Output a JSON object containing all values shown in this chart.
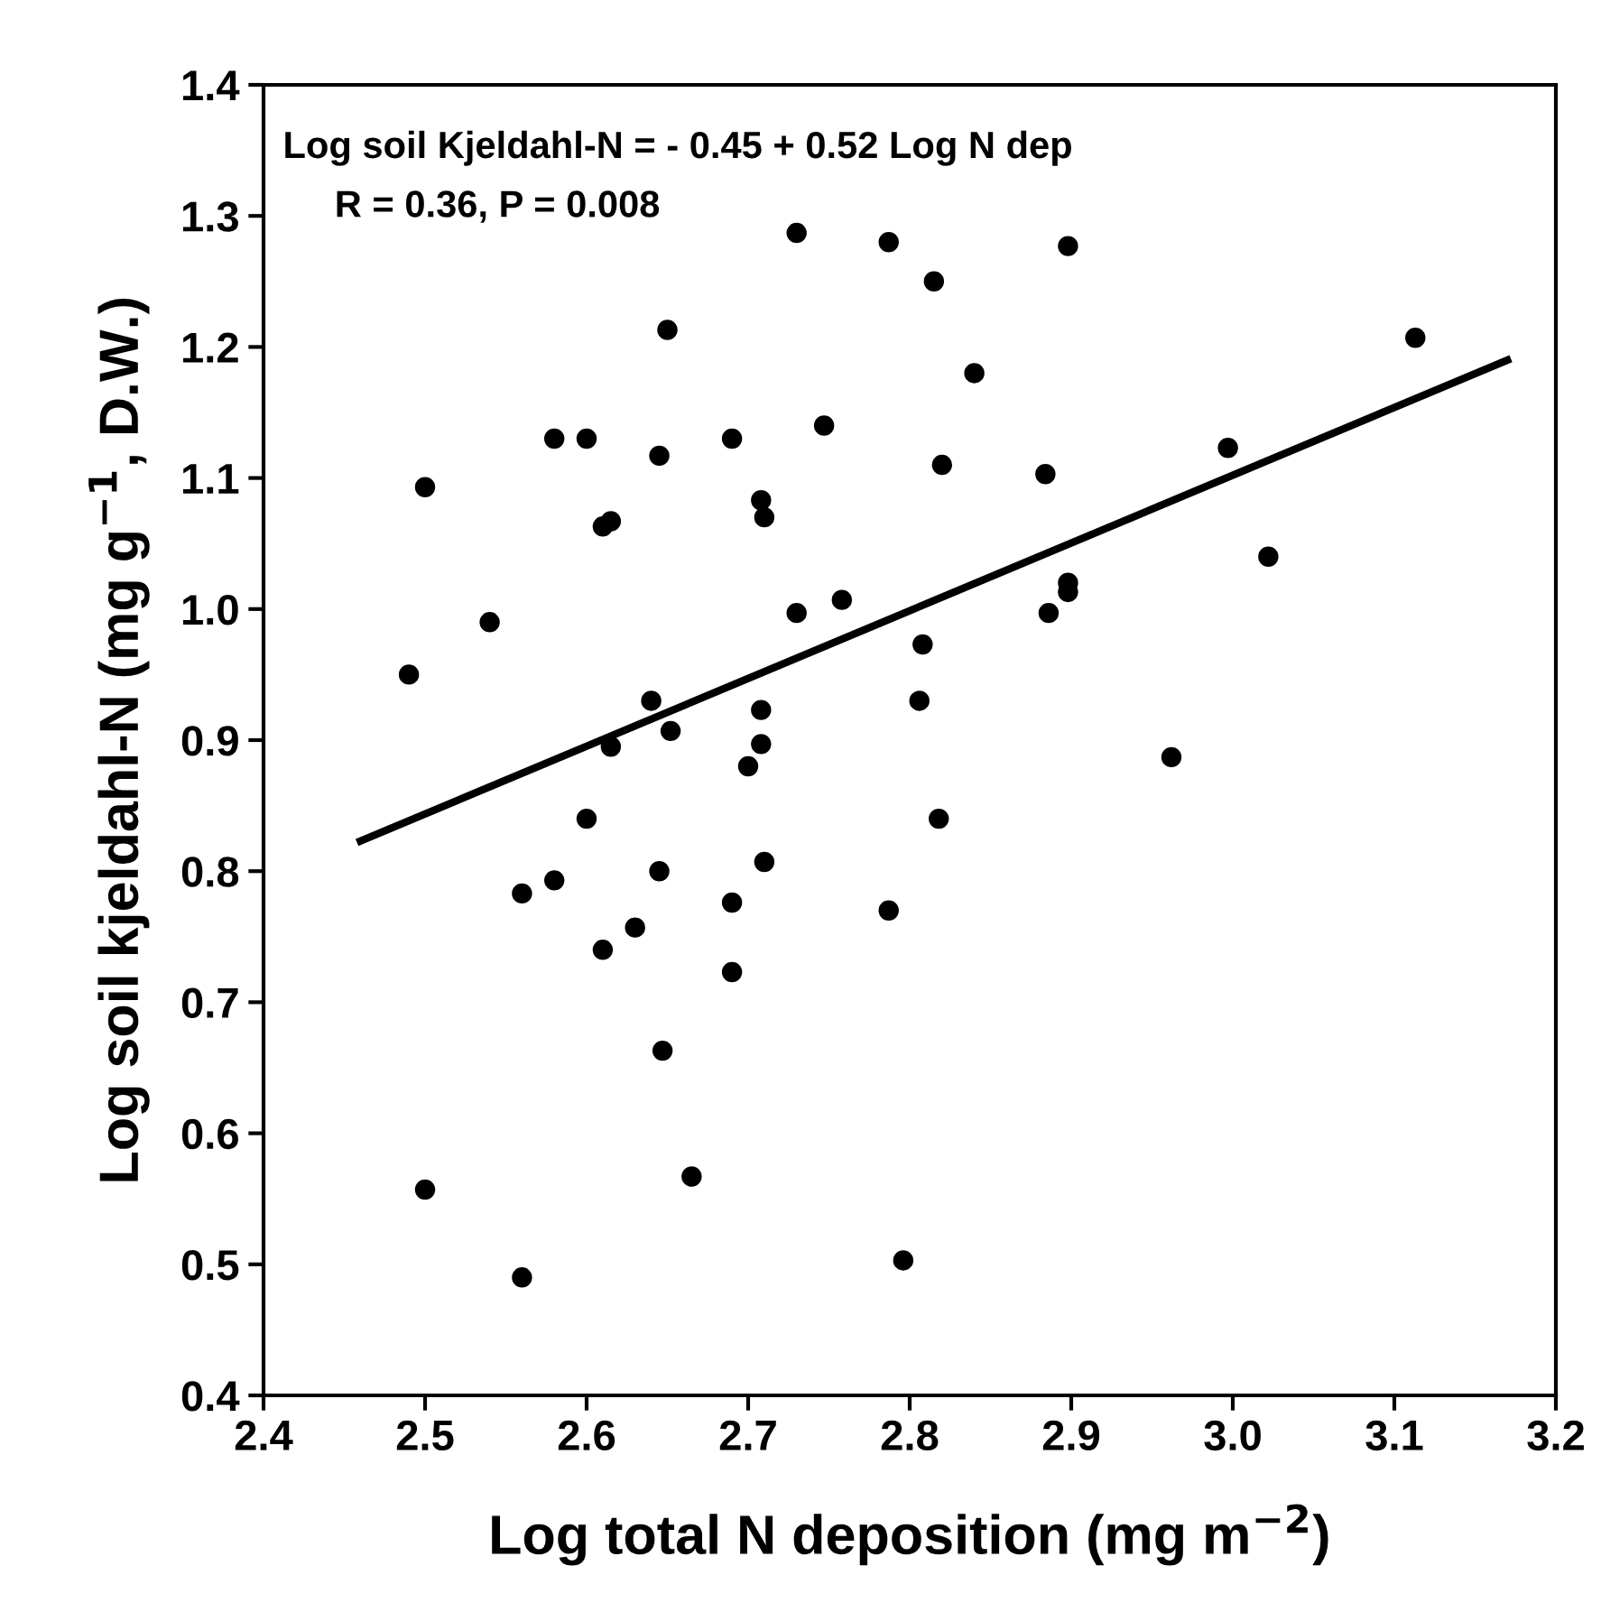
{
  "chart_data": {
    "type": "scatter",
    "xlabel": "Log total N deposition (mg m$^{−2}$)",
    "ylabel": "Log soil kjeldahl-N (mg g$^{−1}$, D.W.)",
    "annotations": [
      "Log soil Kjeldahl-N = - 0.45 + 0.52 Log N dep",
      "R = 0.36, P = 0.008"
    ],
    "xlim": [
      2.4,
      3.2
    ],
    "xticks": [
      2.4,
      2.5,
      2.6,
      2.7,
      2.8,
      2.9,
      {
        "value": 3,
        "label": "3.0"
      },
      3.1,
      3.2
    ],
    "ylim": [
      0.4,
      1.4
    ],
    "yticks": [
      0.4,
      0.5,
      0.6,
      0.7,
      0.8,
      0.9,
      {
        "value": 1,
        "label": "1.0"
      },
      1.1,
      1.2,
      1.3,
      1.4
    ],
    "grid": false,
    "legend": false,
    "marker": "circle",
    "series": [
      {
        "color": "#000000",
        "x": [
          2.49,
          2.5,
          2.5,
          2.54,
          2.56,
          2.56,
          2.58,
          2.58,
          2.6,
          2.6,
          2.61,
          2.61,
          2.615,
          2.615,
          2.63,
          2.64,
          2.645,
          2.645,
          2.647,
          2.65,
          2.652,
          2.665,
          2.69,
          2.69,
          2.69,
          2.7,
          2.708,
          2.708,
          2.708,
          2.71,
          2.71,
          2.73,
          2.73,
          2.747,
          2.758,
          2.787,
          2.787,
          2.796,
          2.806,
          2.808,
          2.815,
          2.818,
          2.82,
          2.84,
          2.884,
          2.886,
          2.898,
          2.898,
          2.898,
          2.962,
          2.997,
          3.022,
          3.113
        ],
        "values": [
          0.95,
          1.093,
          0.557,
          0.99,
          0.783,
          0.49,
          1.13,
          0.793,
          1.13,
          0.84,
          1.063,
          0.74,
          1.067,
          0.895,
          0.757,
          0.93,
          1.117,
          0.8,
          0.663,
          1.213,
          0.907,
          0.567,
          1.13,
          0.776,
          0.723,
          0.88,
          1.083,
          0.923,
          0.897,
          1.07,
          0.807,
          1.287,
          0.997,
          1.14,
          1.007,
          1.28,
          0.77,
          0.503,
          0.93,
          0.973,
          1.25,
          0.84,
          1.11,
          1.18,
          1.103,
          0.997,
          1.277,
          1.02,
          1.013,
          0.887,
          1.123,
          1.04,
          1.207
        ]
      },
      {
        "type": "line",
        "color": "#000000",
        "marker": "none",
        "line_style": "solid",
        "x": [
          2.46,
          3.17
        ],
        "values": [
          0.823,
          1.19
        ]
      }
    ]
  }
}
